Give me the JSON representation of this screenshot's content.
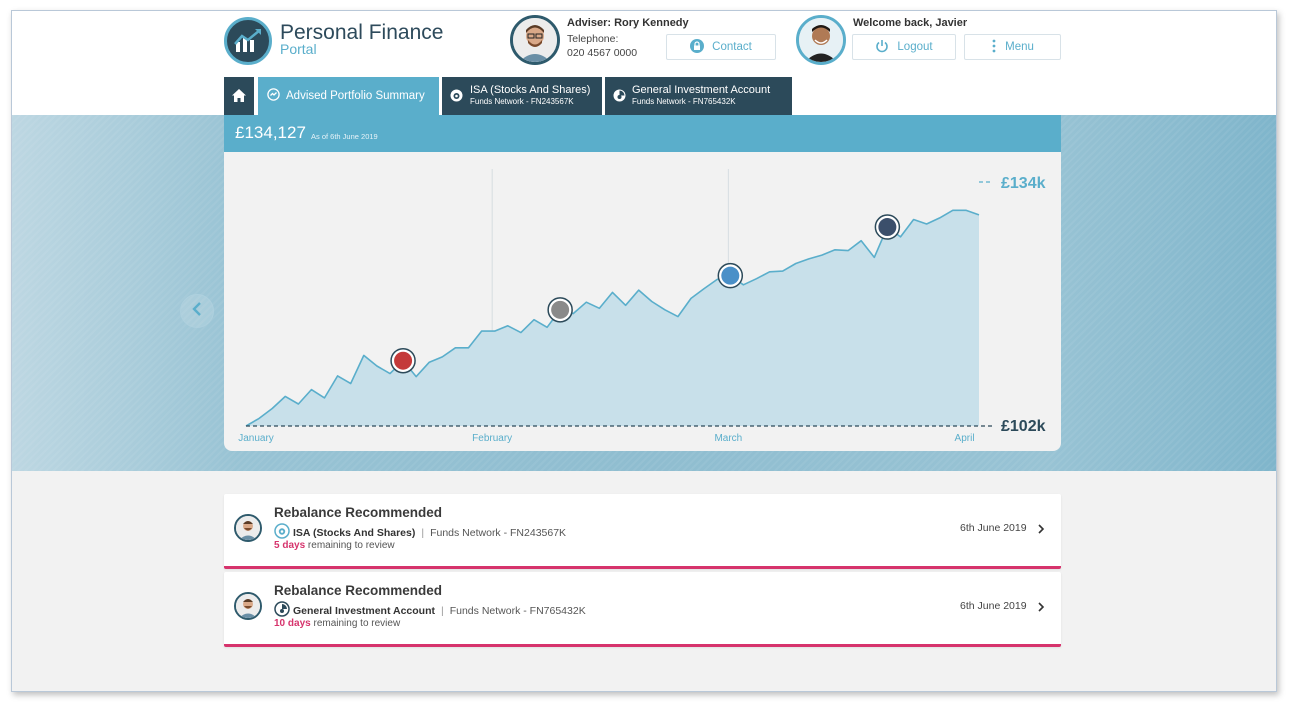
{
  "brand": {
    "line1": "Personal Finance",
    "line2": "Portal"
  },
  "adviser": {
    "name": "Adviser: Rory Kennedy",
    "telephone_label": "Telephone:",
    "telephone": "020 4567 0000",
    "contact_label": "Contact"
  },
  "user": {
    "welcome": "Welcome back, Javier",
    "logout_label": "Logout",
    "menu_label": "Menu"
  },
  "tabs": [
    {
      "label": "Advised Portfolio Summary",
      "active": true
    },
    {
      "label": "ISA (Stocks And Shares)",
      "sub": "Funds Network - FN243567K"
    },
    {
      "label": "General Investment Account",
      "sub": "Funds Network - FN765432K"
    }
  ],
  "portfolio": {
    "balance": "£134,127",
    "as_of": "As of 6th June 2019"
  },
  "chart_data": {
    "type": "area",
    "x_ticks": [
      "January",
      "February",
      "March",
      "April"
    ],
    "y_labels": {
      "max": "£134k",
      "min": "£102k"
    },
    "ylim": [
      102,
      134
    ],
    "y": [
      102,
      103,
      104.3,
      105.9,
      104.9,
      106.8,
      105.7,
      108.6,
      107.6,
      111.3,
      109.9,
      108.9,
      110.6,
      108.5,
      110.4,
      111.1,
      112.3,
      112.3,
      114.5,
      114.5,
      115.2,
      114.3,
      116,
      115,
      117.3,
      116.8,
      118.3,
      117.5,
      119.6,
      117.9,
      119.9,
      118.4,
      117.3,
      116.4,
      118.8,
      120.1,
      121.3,
      121.8,
      120.6,
      121.4,
      122.3,
      122.4,
      123.4,
      124,
      124.5,
      125.2,
      125.1,
      126.4,
      124.2,
      128.2,
      126.9,
      129.2,
      128.6,
      129.4,
      130.4,
      130.4,
      129.8
    ],
    "markers": [
      "event-1",
      "event-2",
      "event-3",
      "event-4"
    ],
    "series_color": "#5aaecb",
    "fill_color": "#c8e0ea"
  },
  "reviews": [
    {
      "title": "Rebalance Recommended",
      "account": "ISA (Stocks And Shares)",
      "provider": "Funds Network - FN243567K",
      "days": "5 days",
      "days_suffix": "remaining to review",
      "date": "6th June 2019"
    },
    {
      "title": "Rebalance Recommended",
      "account": "General Investment Account",
      "provider": "Funds Network - FN765432K",
      "days": "10 days",
      "days_suffix": "remaining to review",
      "date": "6th June 2019"
    }
  ],
  "colors": {
    "primary": "#5aaecb",
    "dark": "#2c4a5a",
    "alert": "#d6336c"
  },
  "icons": [
    "brand-logo-icon",
    "lock-icon",
    "power-icon",
    "kebab-menu-icon",
    "home-icon",
    "summary-tab-icon",
    "isa-tab-icon",
    "gia-tab-icon",
    "chevron-left-icon",
    "chevron-right-icon"
  ]
}
